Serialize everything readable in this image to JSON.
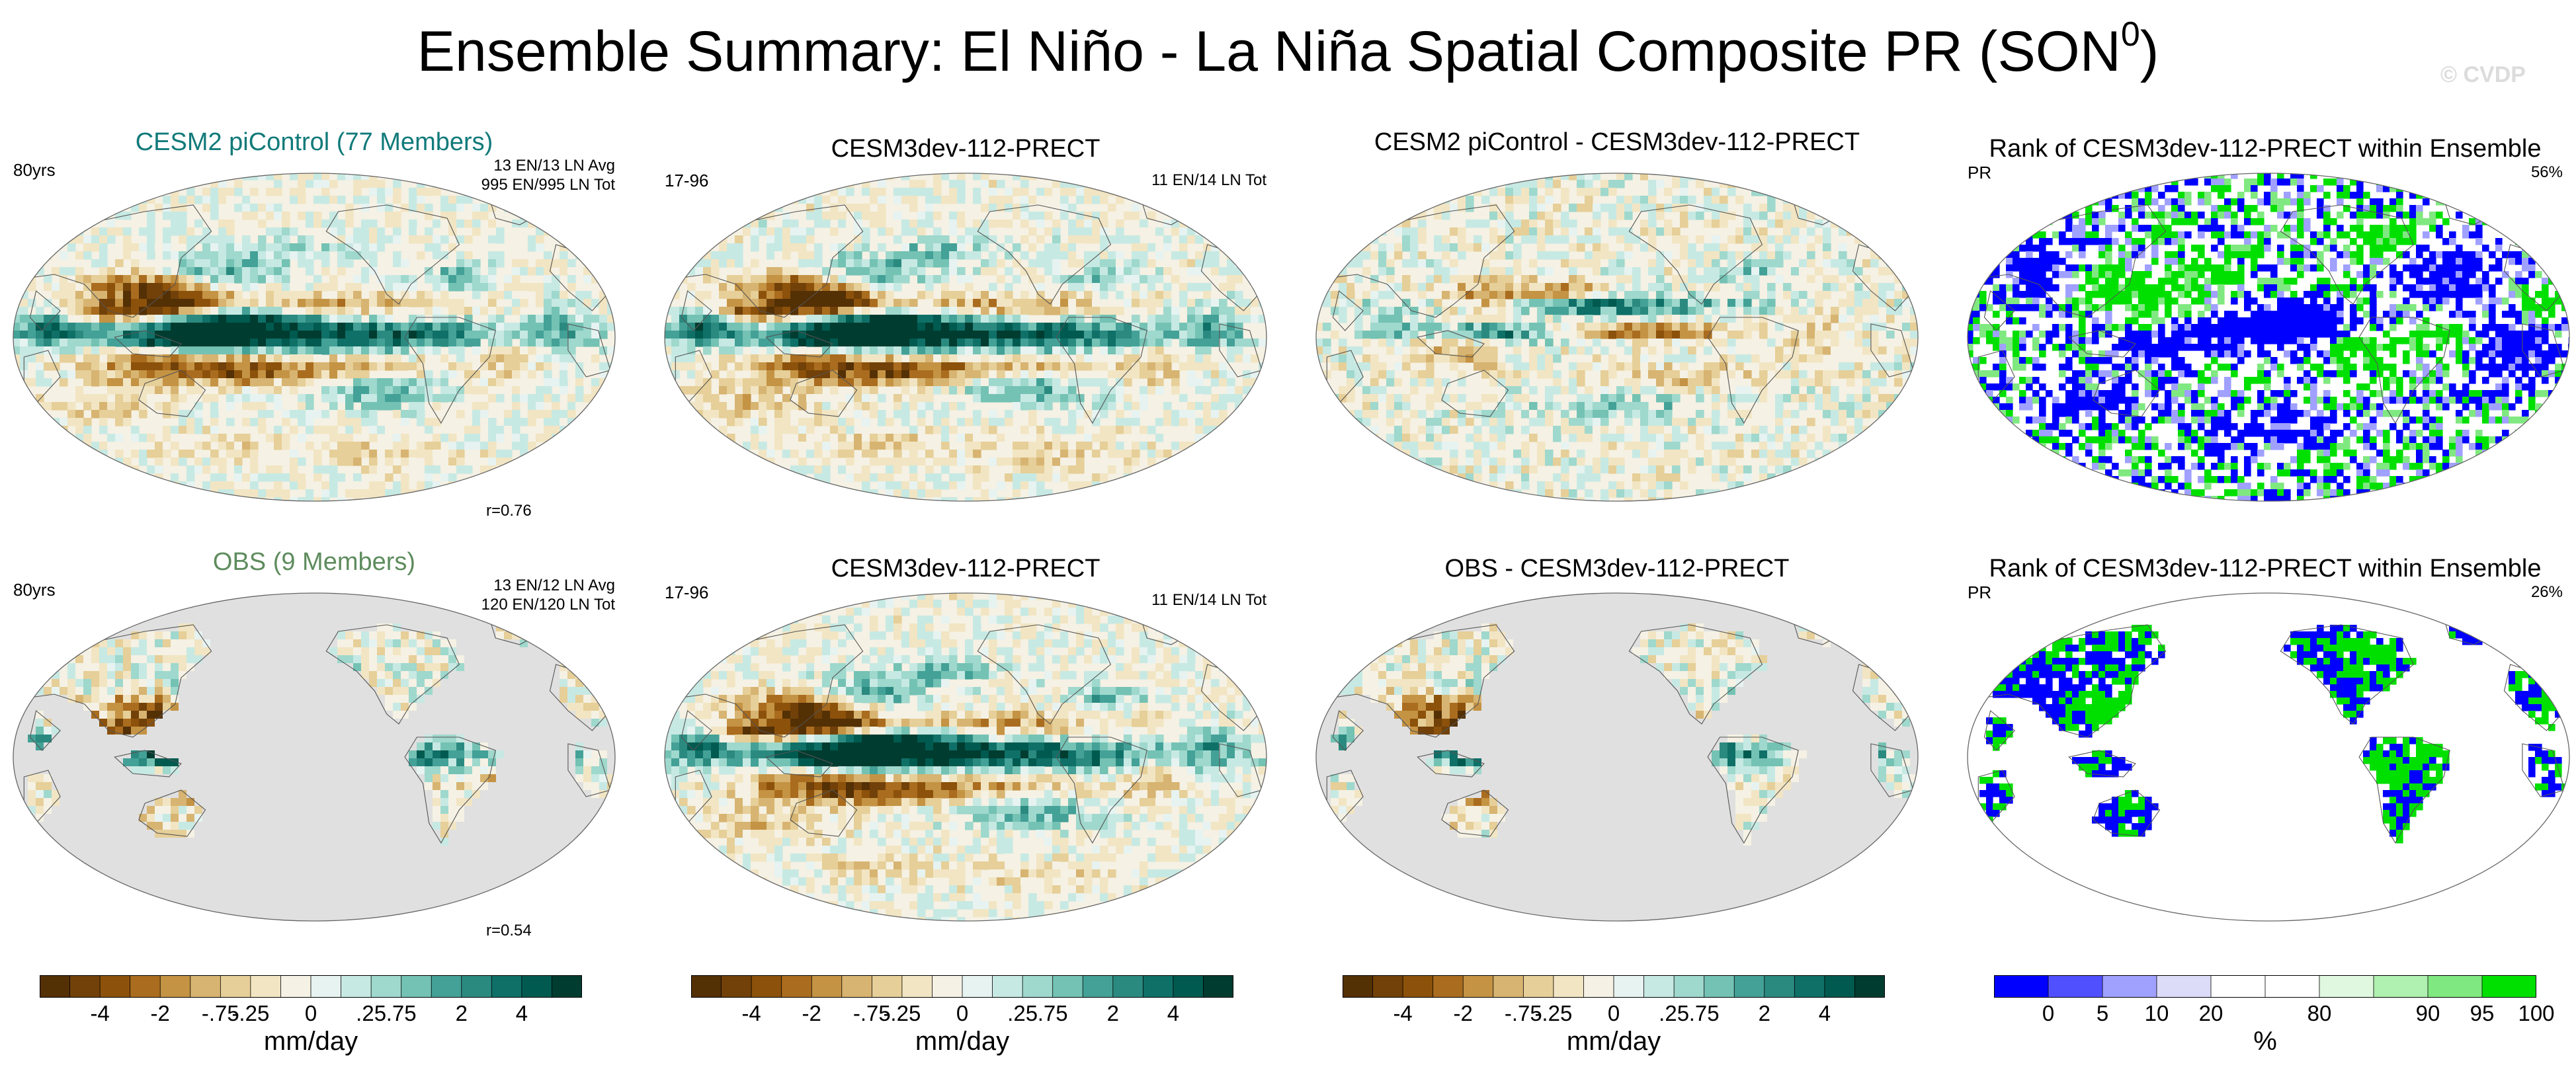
{
  "title": {
    "main": "Ensemble Summary: El Niño - La Niña Spatial Composite PR (SON",
    "superscript": "0",
    "suffix": ")"
  },
  "watermark": "© CVDP",
  "colors": {
    "brown_teal_scale": [
      "#543005",
      "#714109",
      "#8c510a",
      "#aa6c1e",
      "#c49344",
      "#d7b471",
      "#e6cf98",
      "#f2e5c3",
      "#f5f1e4",
      "#e6f3f1",
      "#c7e9e3",
      "#9fd8cd",
      "#74c2b4",
      "#43a197",
      "#2b8a80",
      "#0f7068",
      "#005a4f",
      "#003c30"
    ],
    "rank_scale": [
      "#0000ff",
      "#5050ff",
      "#a0a0ff",
      "#dcdcf8",
      "#ffffff",
      "#ffffff",
      "#e0f8e0",
      "#b0f0b0",
      "#80e880",
      "#00e000"
    ],
    "land_mask": "#e0e0e0",
    "cesm2_title": "#127a7a",
    "obs_title": "#5e8c5e"
  },
  "panels": {
    "r1c1": {
      "title": "CESM2 piControl (77 Members)",
      "left": "80yrs",
      "right": [
        "13 EN/13 LN Avg",
        "995 EN/995 LN Tot"
      ],
      "corr": "r=0.76"
    },
    "r1c2": {
      "title": "CESM3dev-112-PRECT",
      "left": "17-96",
      "right": [
        "11 EN/14 LN Tot"
      ]
    },
    "r1c3": {
      "title": "CESM2 piControl - CESM3dev-112-PRECT"
    },
    "r1c4": {
      "title": "Rank of CESM3dev-112-PRECT within Ensemble",
      "left": "PR",
      "right": [
        "56%"
      ]
    },
    "r2c1": {
      "title": "OBS (9 Members)",
      "left": "80yrs",
      "right": [
        "13 EN/12 LN Avg",
        "120 EN/120 LN Tot"
      ],
      "corr": "r=0.54"
    },
    "r2c2": {
      "title": "CESM3dev-112-PRECT",
      "left": "17-96",
      "right": [
        "11 EN/14 LN Tot"
      ]
    },
    "r2c3": {
      "title": "OBS - CESM3dev-112-PRECT"
    },
    "r2c4": {
      "title": "Rank of CESM3dev-112-PRECT within Ensemble",
      "left": "PR",
      "right": [
        "26%"
      ]
    }
  },
  "colorbars": {
    "pr": {
      "units": "mm/day",
      "ticks": [
        "-4",
        "-2",
        "-.75",
        "-.25",
        "0",
        ".25",
        ".75",
        "2",
        "4"
      ]
    },
    "rank": {
      "units": "%",
      "ticks": [
        "0",
        "5",
        "10",
        "20",
        "80",
        "90",
        "95",
        "100"
      ]
    }
  }
}
